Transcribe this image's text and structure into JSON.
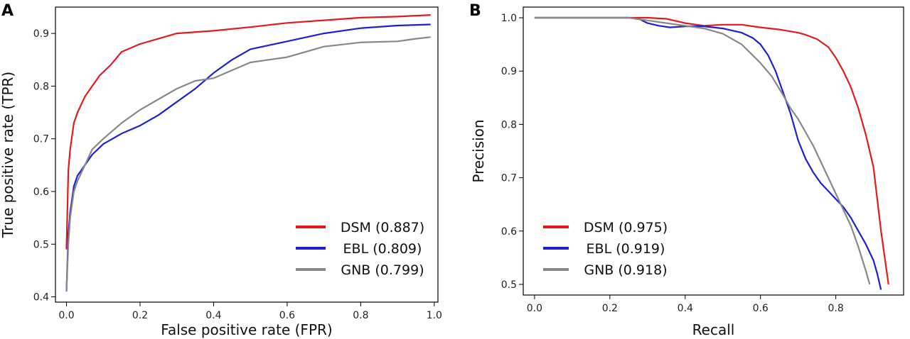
{
  "chart_data": [
    {
      "type": "line",
      "panel_label": "A",
      "title": "",
      "xlabel": "False positive rate (FPR)",
      "ylabel": "True positive rate (TPR)",
      "xlim": [
        -0.03,
        1.01
      ],
      "ylim": [
        0.39,
        0.95
      ],
      "xticks": [
        "0.0",
        "0.2",
        "0.4",
        "0.6",
        "0.8",
        "1.0"
      ],
      "yticks": [
        "0.4",
        "0.5",
        "0.6",
        "0.7",
        "0.8",
        "0.9"
      ],
      "grid": false,
      "legend_position": "lower-right",
      "series": [
        {
          "name": "DSM (0.887)",
          "color": "#e41a1c",
          "points": [
            [
              0.0,
              0.49
            ],
            [
              0.005,
              0.64
            ],
            [
              0.01,
              0.68
            ],
            [
              0.02,
              0.73
            ],
            [
              0.03,
              0.75
            ],
            [
              0.05,
              0.78
            ],
            [
              0.07,
              0.8
            ],
            [
              0.09,
              0.82
            ],
            [
              0.12,
              0.84
            ],
            [
              0.15,
              0.865
            ],
            [
              0.2,
              0.88
            ],
            [
              0.25,
              0.89
            ],
            [
              0.3,
              0.9
            ],
            [
              0.4,
              0.905
            ],
            [
              0.5,
              0.912
            ],
            [
              0.6,
              0.92
            ],
            [
              0.7,
              0.925
            ],
            [
              0.8,
              0.93
            ],
            [
              0.9,
              0.932
            ],
            [
              0.99,
              0.935
            ]
          ]
        },
        {
          "name": "EBL (0.809)",
          "color": "#1f1fd6",
          "points": [
            [
              0.0,
              0.41
            ],
            [
              0.005,
              0.52
            ],
            [
              0.01,
              0.56
            ],
            [
              0.02,
              0.61
            ],
            [
              0.03,
              0.63
            ],
            [
              0.05,
              0.65
            ],
            [
              0.07,
              0.67
            ],
            [
              0.1,
              0.69
            ],
            [
              0.15,
              0.71
            ],
            [
              0.2,
              0.725
            ],
            [
              0.25,
              0.745
            ],
            [
              0.3,
              0.77
            ],
            [
              0.35,
              0.795
            ],
            [
              0.4,
              0.825
            ],
            [
              0.45,
              0.85
            ],
            [
              0.5,
              0.87
            ],
            [
              0.6,
              0.885
            ],
            [
              0.7,
              0.9
            ],
            [
              0.8,
              0.91
            ],
            [
              0.9,
              0.915
            ],
            [
              0.99,
              0.917
            ]
          ]
        },
        {
          "name": "GNB (0.799)",
          "color": "#888888",
          "points": [
            [
              0.0,
              0.41
            ],
            [
              0.005,
              0.5
            ],
            [
              0.01,
              0.55
            ],
            [
              0.02,
              0.6
            ],
            [
              0.03,
              0.62
            ],
            [
              0.05,
              0.65
            ],
            [
              0.07,
              0.68
            ],
            [
              0.1,
              0.7
            ],
            [
              0.15,
              0.73
            ],
            [
              0.2,
              0.755
            ],
            [
              0.25,
              0.775
            ],
            [
              0.3,
              0.795
            ],
            [
              0.35,
              0.81
            ],
            [
              0.4,
              0.815
            ],
            [
              0.45,
              0.83
            ],
            [
              0.5,
              0.845
            ],
            [
              0.6,
              0.855
            ],
            [
              0.7,
              0.875
            ],
            [
              0.8,
              0.883
            ],
            [
              0.9,
              0.885
            ],
            [
              0.95,
              0.89
            ],
            [
              0.99,
              0.893
            ]
          ]
        }
      ]
    },
    {
      "type": "line",
      "panel_label": "B",
      "title": "",
      "xlabel": "Recall",
      "ylabel": "Precision",
      "xlim": [
        -0.03,
        0.98
      ],
      "ylim": [
        0.48,
        1.02
      ],
      "xticks": [
        "0.0",
        "0.2",
        "0.4",
        "0.6",
        "0.8"
      ],
      "yticks": [
        "0.5",
        "0.6",
        "0.7",
        "0.8",
        "0.9",
        "1.0"
      ],
      "grid": false,
      "legend_position": "lower-left",
      "series": [
        {
          "name": "DSM (0.975)",
          "color": "#e41a1c",
          "points": [
            [
              0.0,
              1.0
            ],
            [
              0.3,
              1.0
            ],
            [
              0.35,
              0.998
            ],
            [
              0.4,
              0.99
            ],
            [
              0.45,
              0.985
            ],
            [
              0.5,
              0.987
            ],
            [
              0.55,
              0.987
            ],
            [
              0.6,
              0.982
            ],
            [
              0.65,
              0.978
            ],
            [
              0.7,
              0.972
            ],
            [
              0.72,
              0.968
            ],
            [
              0.75,
              0.96
            ],
            [
              0.78,
              0.945
            ],
            [
              0.8,
              0.925
            ],
            [
              0.82,
              0.9
            ],
            [
              0.84,
              0.87
            ],
            [
              0.86,
              0.83
            ],
            [
              0.88,
              0.78
            ],
            [
              0.9,
              0.72
            ],
            [
              0.91,
              0.66
            ],
            [
              0.92,
              0.6
            ],
            [
              0.93,
              0.55
            ],
            [
              0.94,
              0.5
            ]
          ]
        },
        {
          "name": "EBL (0.919)",
          "color": "#1f1fd6",
          "points": [
            [
              0.0,
              1.0
            ],
            [
              0.25,
              1.0
            ],
            [
              0.28,
              0.997
            ],
            [
              0.3,
              0.99
            ],
            [
              0.33,
              0.985
            ],
            [
              0.36,
              0.982
            ],
            [
              0.4,
              0.984
            ],
            [
              0.45,
              0.984
            ],
            [
              0.5,
              0.98
            ],
            [
              0.55,
              0.972
            ],
            [
              0.58,
              0.962
            ],
            [
              0.6,
              0.95
            ],
            [
              0.62,
              0.93
            ],
            [
              0.64,
              0.9
            ],
            [
              0.66,
              0.86
            ],
            [
              0.68,
              0.82
            ],
            [
              0.7,
              0.77
            ],
            [
              0.72,
              0.735
            ],
            [
              0.74,
              0.71
            ],
            [
              0.76,
              0.69
            ],
            [
              0.78,
              0.675
            ],
            [
              0.8,
              0.66
            ],
            [
              0.82,
              0.645
            ],
            [
              0.84,
              0.625
            ],
            [
              0.86,
              0.6
            ],
            [
              0.88,
              0.575
            ],
            [
              0.9,
              0.545
            ],
            [
              0.91,
              0.52
            ],
            [
              0.92,
              0.49
            ]
          ]
        },
        {
          "name": "GNB (0.918)",
          "color": "#888888",
          "points": [
            [
              0.0,
              1.0
            ],
            [
              0.25,
              1.0
            ],
            [
              0.3,
              0.995
            ],
            [
              0.35,
              0.99
            ],
            [
              0.4,
              0.985
            ],
            [
              0.45,
              0.98
            ],
            [
              0.5,
              0.97
            ],
            [
              0.55,
              0.95
            ],
            [
              0.6,
              0.915
            ],
            [
              0.63,
              0.89
            ],
            [
              0.66,
              0.855
            ],
            [
              0.68,
              0.83
            ],
            [
              0.7,
              0.81
            ],
            [
              0.72,
              0.785
            ],
            [
              0.74,
              0.76
            ],
            [
              0.76,
              0.73
            ],
            [
              0.78,
              0.7
            ],
            [
              0.8,
              0.67
            ],
            [
              0.82,
              0.64
            ],
            [
              0.84,
              0.61
            ],
            [
              0.86,
              0.57
            ],
            [
              0.88,
              0.525
            ],
            [
              0.89,
              0.5
            ]
          ]
        }
      ]
    }
  ]
}
